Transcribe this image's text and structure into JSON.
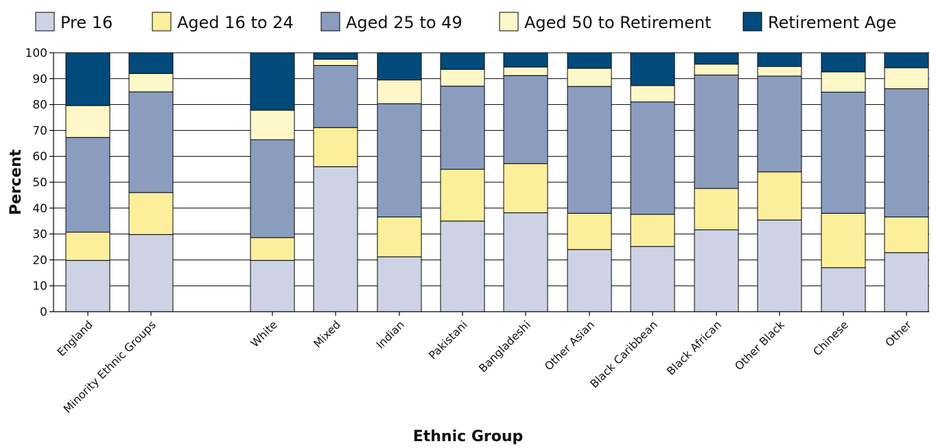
{
  "chart_data": {
    "type": "bar",
    "stacked": true,
    "xlabel": "Ethnic Group",
    "ylabel": "Percent",
    "ylim": [
      0,
      100
    ],
    "yticks": [
      0,
      10,
      20,
      30,
      40,
      50,
      60,
      70,
      80,
      90,
      100
    ],
    "grid": true,
    "legend": "top",
    "categories": [
      "England",
      "Minority Ethnic Groups",
      "White",
      "Mixed",
      "Indian",
      "Pakistani",
      "Bangladeshi",
      "Other Asian",
      "Black Caribbean",
      "Black African",
      "Other Black",
      "Chinese",
      "Other"
    ],
    "series": [
      {
        "name": "Pre 16",
        "color": "#cdd3e4",
        "values": [
          19.8,
          29.8,
          19.8,
          56.0,
          21.2,
          35.0,
          38.2,
          24.0,
          25.2,
          31.6,
          35.4,
          17.0,
          22.8
        ]
      },
      {
        "name": "Aged 16 to 24",
        "color": "#fcef9c",
        "values": [
          10.9,
          16.2,
          8.8,
          15.1,
          15.4,
          20.0,
          19.0,
          14.0,
          12.4,
          16.0,
          18.6,
          21.0,
          13.8
        ]
      },
      {
        "name": "Aged 25 to 49",
        "color": "#8b9dbf",
        "values": [
          36.6,
          38.9,
          37.8,
          24.0,
          43.7,
          32.1,
          34.0,
          49.0,
          43.4,
          43.8,
          37.0,
          46.8,
          49.5
        ]
      },
      {
        "name": "Aged 50 to Retirement",
        "color": "#fef7c8",
        "values": [
          12.3,
          7.1,
          11.4,
          2.4,
          9.2,
          6.5,
          3.3,
          7.0,
          6.3,
          4.2,
          3.7,
          7.8,
          8.1
        ]
      },
      {
        "name": "Retirement Age",
        "color": "#004b7c",
        "values": [
          20.4,
          8.0,
          22.2,
          2.5,
          10.5,
          6.4,
          5.5,
          6.0,
          12.7,
          4.4,
          5.3,
          7.4,
          5.8
        ]
      }
    ]
  }
}
